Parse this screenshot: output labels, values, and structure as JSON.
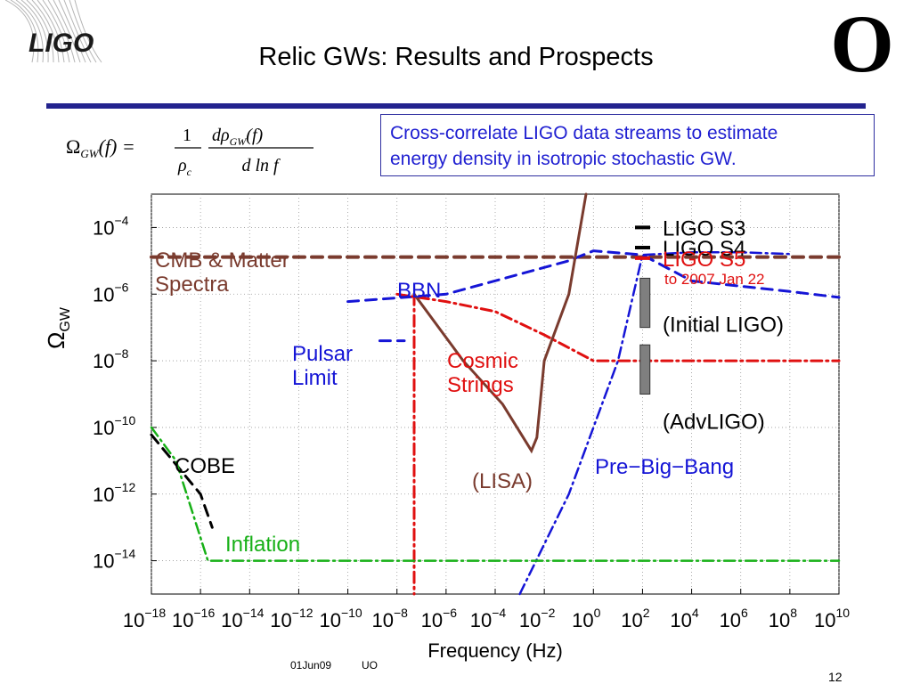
{
  "title": "Relic GWs: Results and Prospects",
  "logo_left": "LIGO",
  "logo_right": "O",
  "callout": {
    "line1": "Cross-correlate LIGO data streams to estimate",
    "line2": "energy density in isotropic stochastic GW."
  },
  "formula": {
    "lhs": "Ω",
    "lhs_sub": "GW",
    "lhs_arg": "(f) =",
    "one": "1",
    "rho_c": "ρ",
    "rho_c_sub": "c",
    "num": "dρ",
    "num_sub": "GW",
    "num_arg": "(f)",
    "den": "d ln f"
  },
  "footer": {
    "date": "01Jun09",
    "org": "UO",
    "page": "12"
  },
  "colors": {
    "cmb": "#7a3b2e",
    "bbn": "#1515d6",
    "pulsar": "#1515d6",
    "cosmic": "#e01010",
    "lisa": "#7a3b2e",
    "prebigbang": "#1515d6",
    "cobe": "#000000",
    "inflation": "#17b017",
    "initial_box": "#7f7f7f",
    "adv_box": "#7f7f7f",
    "title_rule": "#23238e",
    "callout_text": "#1f1fd1"
  },
  "chart_data": {
    "type": "line",
    "xlabel": "Frequency (Hz)",
    "ylabel": "Ω",
    "ylabel_sub": "GW",
    "x_scale": "log",
    "y_scale": "log",
    "xlim": [
      1e-18,
      10000000000.0
    ],
    "ylim": [
      1e-15,
      0.001
    ],
    "grid": true,
    "x_ticks": [
      {
        "base": "10",
        "exp": "−18",
        "value": 1e-18
      },
      {
        "base": "10",
        "exp": "−16",
        "value": 1e-16
      },
      {
        "base": "10",
        "exp": "−14",
        "value": 1e-14
      },
      {
        "base": "10",
        "exp": "−12",
        "value": 1e-12
      },
      {
        "base": "10",
        "exp": "−10",
        "value": 1e-10
      },
      {
        "base": "10",
        "exp": "−8",
        "value": 1e-08
      },
      {
        "base": "10",
        "exp": "−6",
        "value": 1e-06
      },
      {
        "base": "10",
        "exp": "−4",
        "value": 0.0001
      },
      {
        "base": "10",
        "exp": "−2",
        "value": 0.01
      },
      {
        "base": "10",
        "exp": "0",
        "value": 1
      },
      {
        "base": "10",
        "exp": "2",
        "value": 100.0
      },
      {
        "base": "10",
        "exp": "4",
        "value": 10000.0
      },
      {
        "base": "10",
        "exp": "6",
        "value": 1000000.0
      },
      {
        "base": "10",
        "exp": "8",
        "value": 100000000.0
      },
      {
        "base": "10",
        "exp": "10",
        "value": 10000000000.0
      }
    ],
    "y_ticks": [
      {
        "base": "10",
        "exp": "−4",
        "value": 0.0001
      },
      {
        "base": "10",
        "exp": "−6",
        "value": 1e-06
      },
      {
        "base": "10",
        "exp": "−8",
        "value": 1e-08
      },
      {
        "base": "10",
        "exp": "−10",
        "value": 1e-10
      },
      {
        "base": "10",
        "exp": "−12",
        "value": 1e-12
      },
      {
        "base": "10",
        "exp": "−14",
        "value": 1e-14
      }
    ],
    "series": [
      {
        "key": "cmb",
        "style": "dashed",
        "points": [
          [
            1e-18,
            1.3e-05
          ],
          [
            10000000000.0,
            1.3e-05
          ]
        ]
      },
      {
        "key": "bbn",
        "style": "dashed",
        "points": [
          [
            1e-10,
            6e-07
          ],
          [
            1e-06,
            1e-06
          ],
          [
            0.1,
            1e-05
          ],
          [
            1,
            2e-05
          ],
          [
            100.0,
            1.5e-05
          ],
          [
            10000.0,
            2.5e-06
          ],
          [
            100000000.0,
            1.2e-06
          ],
          [
            10000000000.0,
            8e-07
          ]
        ]
      },
      {
        "key": "pulsar",
        "style": "dashed",
        "points": [
          [
            2e-09,
            4e-08
          ],
          [
            2e-08,
            4e-08
          ]
        ]
      },
      {
        "key": "cosmic",
        "style": "dashdot",
        "points": [
          [
            1e-08,
            1e-06
          ],
          [
            1e-06,
            6e-07
          ],
          [
            0.0001,
            3e-07
          ],
          [
            0.01,
            6e-08
          ],
          [
            1,
            1e-08
          ],
          [
            100.0,
            1e-08
          ],
          [
            10000000000.0,
            1e-08
          ]
        ]
      },
      {
        "key": "cosmic_drop",
        "style": "dashdot",
        "points": [
          [
            5e-08,
            1e-06
          ],
          [
            5e-08,
            1e-15
          ]
        ]
      },
      {
        "key": "lisa",
        "style": "solid",
        "points": [
          [
            5e-08,
            1e-06
          ],
          [
            5e-06,
            1e-08
          ],
          [
            0.0002,
            5e-10
          ],
          [
            0.003,
            2e-11
          ],
          [
            0.005,
            5e-11
          ],
          [
            0.01,
            1e-08
          ],
          [
            0.1,
            1e-06
          ],
          [
            0.5,
            0.001
          ]
        ]
      },
      {
        "key": "prebigbang",
        "style": "dashdot",
        "points": [
          [
            0.001,
            1e-15
          ],
          [
            0.1,
            1e-12
          ],
          [
            10,
            1e-08
          ],
          [
            100.0,
            1.5e-05
          ],
          [
            10000.0,
            1.8e-05
          ],
          [
            1000000.0,
            1.8e-05
          ],
          [
            100000000.0,
            1.6e-05
          ]
        ]
      },
      {
        "key": "cobe",
        "style": "dashed",
        "points": [
          [
            1e-18,
            6e-11
          ],
          [
            1e-16,
            1e-12
          ],
          [
            3e-16,
            1e-13
          ]
        ]
      },
      {
        "key": "inflation",
        "style": "dashdot",
        "points": [
          [
            1e-18,
            1e-10
          ],
          [
            1e-17,
            1e-11
          ],
          [
            2e-16,
            1e-14
          ],
          [
            1e-15,
            1e-14
          ],
          [
            10000000000.0,
            1e-14
          ]
        ]
      }
    ],
    "series_labels": [
      {
        "key": "cmb",
        "lines": [
          "CMB & Matter",
          "Spectra"
        ]
      },
      {
        "key": "bbn",
        "lines": [
          "BBN"
        ]
      },
      {
        "key": "pulsar",
        "lines": [
          "Pulsar",
          "Limit"
        ]
      },
      {
        "key": "cosmic",
        "lines": [
          "Cosmic",
          "Strings"
        ]
      },
      {
        "key": "lisa",
        "lines": [
          "(LISA)"
        ]
      },
      {
        "key": "prebigbang",
        "lines": [
          "Pre−Big−Bang"
        ]
      },
      {
        "key": "cobe",
        "lines": [
          "COBE"
        ]
      },
      {
        "key": "inflation",
        "lines": [
          "Inflation"
        ]
      }
    ],
    "legend": [
      {
        "label": "LIGO S3",
        "color": "#000000",
        "y_value": 0.0001
      },
      {
        "label": "LIGO S4",
        "color": "#000000",
        "y_value": 2.5e-05
      },
      {
        "label": "LIGO S5",
        "color": "#e01010",
        "y_value": 1.2e-05,
        "note": "to 2007 Jan 22"
      }
    ],
    "boxes": [
      {
        "label": "(Initial LIGO)",
        "x_range": [
          80,
          200
        ],
        "y_range": [
          1e-07,
          3e-06
        ],
        "text_y": 1.2e-07
      },
      {
        "label": "(AdvLIGO)",
        "x_range": [
          80,
          200
        ],
        "y_range": [
          1e-09,
          3e-08
        ],
        "text_y": 1.5e-10
      }
    ]
  }
}
